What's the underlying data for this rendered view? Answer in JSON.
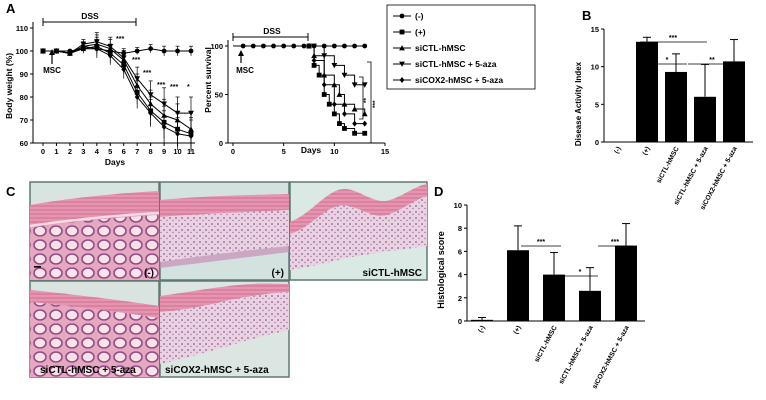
{
  "panel_labels": {
    "a": "A",
    "b": "B",
    "c": "C",
    "d": "D"
  },
  "panel_a": {
    "bw": {
      "ylabel": "Body weight (%)",
      "xlabel": "Days",
      "yticks": [
        "60",
        "70",
        "80",
        "90",
        "100",
        "110"
      ],
      "xticks": [
        "0",
        "1",
        "2",
        "3",
        "4",
        "5",
        "6",
        "7",
        "8",
        "9",
        "10",
        "11"
      ],
      "dss_label": "DSS",
      "msc_label": "MSC",
      "sig_labels": [
        "***",
        "***",
        "***",
        "***",
        "***",
        "*"
      ]
    },
    "surv": {
      "ylabel": "Percent survival",
      "xlabel": "Days",
      "yticks": [
        "0",
        "50",
        "100"
      ],
      "xticks": [
        "0",
        "5",
        "10",
        "15"
      ],
      "dss_label": "DSS",
      "msc_label": "MSC",
      "sig_labels": [
        "**",
        "***"
      ]
    },
    "legend": [
      "(-)",
      "(+)",
      "siCTL-hMSC",
      "siCTL-hMSC + 5-aza",
      "siCOX2-hMSC + 5-aza"
    ]
  },
  "panel_b": {
    "ylabel": "Disease Activity Index",
    "yticks": [
      "0",
      "5",
      "10",
      "15"
    ],
    "categories": [
      "(-)",
      "(+)",
      "siCTL-hMSC",
      "siCTL-hMSC + 5-aza",
      "siCOX2-hMSC + 5-aza"
    ],
    "sig_labels": [
      "***",
      "*",
      "**"
    ]
  },
  "panel_c": {
    "captions": [
      "(-)",
      "(+)",
      "siCTL-hMSC",
      "siCTL-hMSC + 5-aza",
      "siCOX2-hMSC + 5-aza"
    ]
  },
  "panel_d": {
    "ylabel": "Histological score",
    "yticks": [
      "0",
      "2",
      "4",
      "6",
      "8",
      "10"
    ],
    "categories": [
      "(-)",
      "(+)",
      "siCTL-hMSC",
      "siCTL-hMSC + 5-aza",
      "siCOX2-hMSC + 5-aza"
    ],
    "sig_labels": [
      "***",
      "*",
      "***"
    ]
  },
  "chart_data": [
    {
      "type": "line",
      "panel": "A-left",
      "xlabel": "Days",
      "ylabel": "Body weight (%)",
      "xlim": [
        0,
        11
      ],
      "ylim": [
        60,
        110
      ],
      "x": [
        0,
        1,
        2,
        3,
        4,
        5,
        6,
        7,
        8,
        9,
        10,
        11
      ],
      "series": [
        {
          "name": "(-)",
          "values": [
            100,
            100,
            100,
            101,
            101,
            100,
            99,
            100,
            101,
            100,
            100,
            100
          ]
        },
        {
          "name": "(+)",
          "values": [
            100,
            100,
            99,
            101,
            102,
            99,
            94,
            82,
            74,
            69,
            66,
            64
          ]
        },
        {
          "name": "siCTL-hMSC",
          "values": [
            100,
            100,
            99,
            102,
            103,
            101,
            96,
            85,
            77,
            72,
            70,
            66
          ]
        },
        {
          "name": "siCTL-hMSC + 5-aza",
          "values": [
            100,
            100,
            99,
            103,
            104,
            102,
            97,
            88,
            81,
            77,
            73,
            73
          ]
        },
        {
          "name": "siCOX2-hMSC + 5-aza",
          "values": [
            100,
            100,
            99,
            102,
            101,
            98,
            92,
            80,
            73,
            67,
            64,
            63
          ]
        }
      ]
    },
    {
      "type": "line",
      "panel": "A-right",
      "xlabel": "Days",
      "ylabel": "Percent survival",
      "xlim": [
        0,
        15
      ],
      "ylim": [
        0,
        100
      ],
      "series": [
        {
          "name": "(-)",
          "x": [
            0,
            1,
            2,
            3,
            4,
            5,
            6,
            7,
            8,
            9,
            10,
            11,
            12,
            13
          ],
          "values": [
            100,
            100,
            100,
            100,
            100,
            100,
            100,
            100,
            100,
            100,
            100,
            100,
            100,
            100
          ]
        },
        {
          "name": "(+)",
          "x": [
            0,
            7.5,
            8,
            8.5,
            9,
            9.5,
            10,
            10.5,
            11,
            12,
            13
          ],
          "values": [
            100,
            100,
            80,
            70,
            50,
            40,
            30,
            20,
            15,
            10,
            10
          ]
        },
        {
          "name": "siCTL-hMSC",
          "x": [
            0,
            7.5,
            8,
            9,
            10,
            10.5,
            11,
            12,
            13
          ],
          "values": [
            100,
            100,
            90,
            70,
            60,
            50,
            40,
            35,
            30
          ]
        },
        {
          "name": "siCTL-hMSC + 5-aza",
          "x": [
            0,
            8,
            9,
            10,
            11,
            12,
            13
          ],
          "values": [
            100,
            100,
            90,
            80,
            70,
            60,
            60
          ]
        },
        {
          "name": "siCOX2-hMSC + 5-aza",
          "x": [
            0,
            7.5,
            8,
            9,
            10,
            11,
            12,
            13
          ],
          "values": [
            100,
            100,
            85,
            60,
            40,
            30,
            20,
            20
          ]
        }
      ]
    },
    {
      "type": "bar",
      "panel": "B",
      "ylabel": "Disease Activity Index",
      "ylim": [
        0,
        15
      ],
      "categories": [
        "(-)",
        "(+)",
        "siCTL-hMSC",
        "siCTL-hMSC + 5-aza",
        "siCOX2-hMSC + 5-aza"
      ],
      "values": [
        0,
        13.3,
        9.3,
        6.0,
        10.7
      ],
      "errors": [
        0,
        0.6,
        2.4,
        4.3,
        2.9
      ]
    },
    {
      "type": "bar",
      "panel": "D",
      "ylabel": "Histological score",
      "ylim": [
        0,
        10
      ],
      "categories": [
        "(-)",
        "(+)",
        "siCTL-hMSC",
        "siCTL-hMSC + 5-aza",
        "siCOX2-hMSC + 5-aza"
      ],
      "values": [
        0.1,
        6.1,
        4.0,
        2.6,
        6.5
      ],
      "errors": [
        0.2,
        2.1,
        1.9,
        2.0,
        1.9
      ]
    }
  ]
}
